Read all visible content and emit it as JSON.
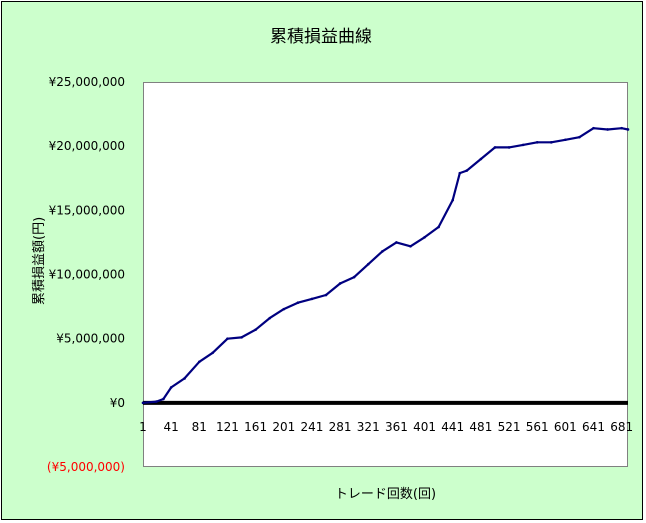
{
  "chart_data": {
    "type": "line",
    "title": "累積損益曲線",
    "xlabel": "トレード回数(回)",
    "ylabel": "累積損益額(円)",
    "xlim": [
      1,
      690
    ],
    "ylim": [
      -5000000,
      25000000
    ],
    "x_ticks": [
      "1",
      "41",
      "81",
      "121",
      "161",
      "201",
      "241",
      "281",
      "321",
      "361",
      "401",
      "441",
      "481",
      "521",
      "561",
      "601",
      "641",
      "681"
    ],
    "y_ticks": [
      {
        "value": 25000000,
        "label": "¥25,000,000"
      },
      {
        "value": 20000000,
        "label": "¥20,000,000"
      },
      {
        "value": 15000000,
        "label": "¥15,000,000"
      },
      {
        "value": 10000000,
        "label": "¥10,000,000"
      },
      {
        "value": 5000000,
        "label": "¥5,000,000"
      },
      {
        "value": 0,
        "label": "¥0"
      },
      {
        "value": -5000000,
        "label": "(¥5,000,000)"
      }
    ],
    "negative_label_color": "#ff0000",
    "series": [
      {
        "color": "#000080",
        "x": [
          1,
          20,
          30,
          41,
          60,
          81,
          100,
          121,
          141,
          161,
          181,
          201,
          221,
          241,
          261,
          281,
          301,
          321,
          341,
          361,
          381,
          401,
          421,
          441,
          451,
          461,
          481,
          501,
          521,
          541,
          561,
          581,
          601,
          621,
          641,
          661,
          681,
          690
        ],
        "y": [
          0,
          100000,
          300000,
          1200000,
          1900000,
          3200000,
          3900000,
          5000000,
          5100000,
          5700000,
          6600000,
          7300000,
          7800000,
          8100000,
          8400000,
          9300000,
          9800000,
          10800000,
          11800000,
          12500000,
          12200000,
          12900000,
          13700000,
          15800000,
          17900000,
          18100000,
          19000000,
          19900000,
          19900000,
          20100000,
          20300000,
          20300000,
          20500000,
          20700000,
          21400000,
          21300000,
          21400000,
          21300000
        ]
      }
    ],
    "zero_line": {
      "color": "#000000"
    },
    "grid": false,
    "legend": "none"
  },
  "colors": {
    "frame_bg": "#ccffcc",
    "plot_bg": "#ffffff"
  }
}
